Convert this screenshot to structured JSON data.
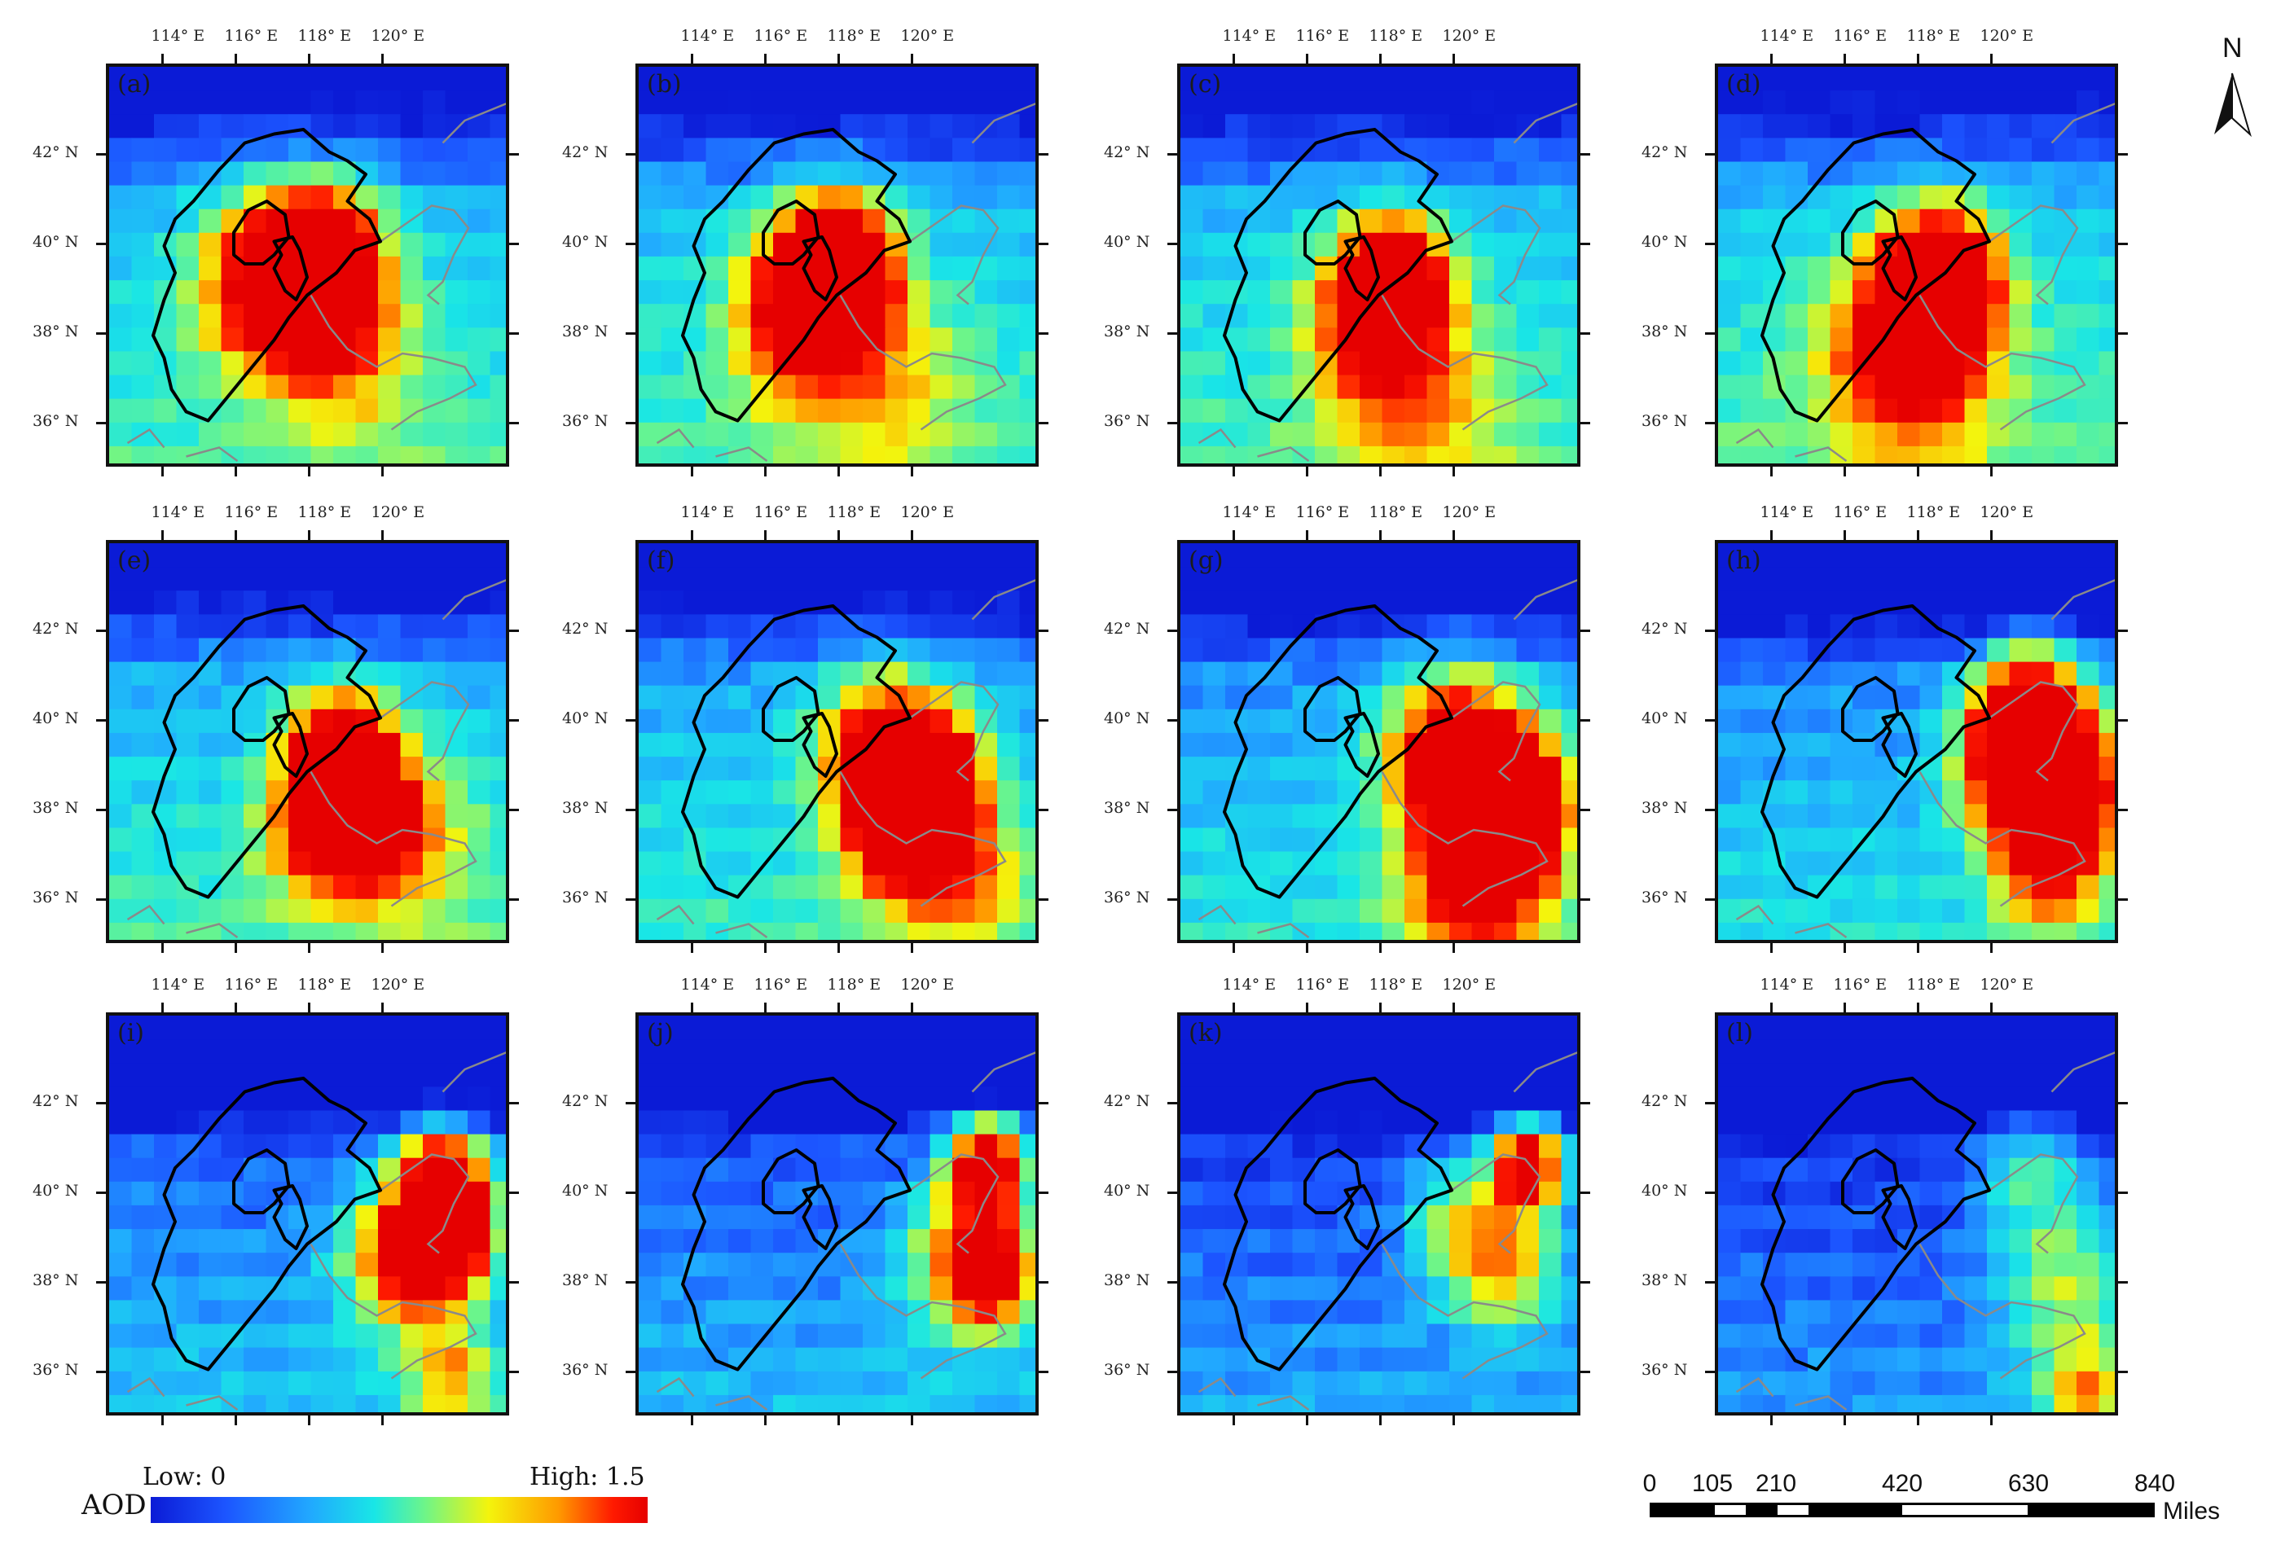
{
  "panels": [
    {
      "label": "(a)",
      "heat": [
        [
          118.3,
          39.7,
          1.0,
          1.6
        ],
        [
          116.7,
          39.2,
          0.7,
          1.8
        ],
        [
          118.0,
          38.5,
          0.4,
          1.5
        ],
        [
          119,
          37.5,
          0.3,
          2.0
        ]
      ],
      "base": 0.35,
      "north_fade": 0.18
    },
    {
      "label": "(b)",
      "heat": [
        [
          118.0,
          39.6,
          1.0,
          1.4
        ],
        [
          117.3,
          39.0,
          0.7,
          1.7
        ],
        [
          117.0,
          38.0,
          0.4,
          1.8
        ],
        [
          119.5,
          37,
          0.25,
          2
        ]
      ],
      "base": 0.36,
      "north_fade": 0.2
    },
    {
      "label": "(c)",
      "heat": [
        [
          118.3,
          39.2,
          1.05,
          1.3
        ],
        [
          117.8,
          38.2,
          0.55,
          1.8
        ],
        [
          119,
          36.5,
          0.3,
          2.2
        ]
      ],
      "base": 0.36,
      "north_fade": 0.2
    },
    {
      "label": "(d)",
      "heat": [
        [
          118.6,
          39.3,
          1.1,
          1.4
        ],
        [
          118.0,
          38.0,
          0.6,
          1.9
        ],
        [
          117.5,
          37.5,
          0.35,
          2.2
        ]
      ],
      "base": 0.38,
      "north_fade": 0.2
    },
    {
      "label": "(e)",
      "heat": [
        [
          118.8,
          39.2,
          1.0,
          1.4
        ],
        [
          119.3,
          38.0,
          0.8,
          1.3
        ],
        [
          118.3,
          37.5,
          0.5,
          1.5
        ],
        [
          120.5,
          37.5,
          0.4,
          1.8
        ]
      ],
      "base": 0.35,
      "north_fade": 0.22
    },
    {
      "label": "(f)",
      "heat": [
        [
          119.3,
          39.2,
          1.0,
          1.7
        ],
        [
          120.5,
          38.6,
          1.0,
          1.3
        ],
        [
          119.7,
          37.3,
          0.7,
          1.4
        ],
        [
          121.5,
          36.5,
          0.4,
          1.5
        ]
      ],
      "base": 0.33,
      "north_fade": 0.22
    },
    {
      "label": "(g)",
      "heat": [
        [
          120.0,
          39.2,
          1.0,
          1.8
        ],
        [
          121.5,
          38.3,
          1.0,
          1.5
        ],
        [
          121.2,
          37.0,
          0.7,
          1.6
        ],
        [
          120,
          36,
          0.4,
          1.7
        ]
      ],
      "base": 0.3,
      "north_fade": 0.22
    },
    {
      "label": "(h)",
      "heat": [
        [
          120.8,
          39.2,
          1.0,
          1.6
        ],
        [
          122.0,
          38.5,
          0.9,
          1.6
        ],
        [
          121.0,
          40.5,
          0.6,
          1.4
        ],
        [
          121.5,
          36.8,
          0.55,
          1.4
        ]
      ],
      "base": 0.28,
      "north_fade": 0.25
    },
    {
      "label": "(i)",
      "heat": [
        [
          121.6,
          40.3,
          1.0,
          1.2
        ],
        [
          121.8,
          39.0,
          0.95,
          1.2
        ],
        [
          120.5,
          38.6,
          0.75,
          1.5
        ],
        [
          121.8,
          36.0,
          0.45,
          1.2
        ]
      ],
      "base": 0.22,
      "north_fade": 0.3
    },
    {
      "label": "(j)",
      "heat": [
        [
          122.0,
          40.7,
          1.0,
          1.1
        ],
        [
          121.5,
          38.6,
          0.65,
          1.6
        ],
        [
          122.2,
          38.2,
          0.75,
          1.0
        ]
      ],
      "base": 0.2,
      "north_fade": 0.3
    },
    {
      "label": "(k)",
      "heat": [
        [
          122.0,
          40.7,
          1.0,
          1.0
        ],
        [
          121.3,
          38.5,
          0.55,
          1.5
        ],
        [
          120,
          39.5,
          0.35,
          1.4
        ]
      ],
      "base": 0.16,
      "north_fade": 0.32
    },
    {
      "label": "(l)",
      "heat": [
        [
          122.0,
          38.0,
          0.4,
          1.8
        ],
        [
          121.0,
          40.5,
          0.3,
          1.5
        ],
        [
          122.5,
          35.5,
          0.5,
          1.2
        ]
      ],
      "base": 0.14,
      "north_fade": 0.34
    }
  ],
  "axes": {
    "lon_ticks": [
      114,
      116,
      118,
      120
    ],
    "lat_ticks": [
      42,
      40,
      38,
      36
    ],
    "lon_range": [
      112.5,
      123.5
    ],
    "lat_range": [
      35.0,
      44.0
    ]
  },
  "legend": {
    "title": "AOD",
    "low": "Low: 0",
    "high": "High: 1.5"
  },
  "scale_bar": {
    "ticks": [
      "0",
      "105",
      "210",
      "420",
      "630",
      "840"
    ],
    "unit": "Miles"
  },
  "north_arrow": {
    "letter": "N"
  },
  "colors": {
    "frame": "#111111",
    "boundary": "#000000",
    "coastline": "#8a8a8a",
    "ramp": [
      "#0b1bd6",
      "#1c55ff",
      "#21a8ff",
      "#19e6e6",
      "#6cf58a",
      "#f4f40c",
      "#ff9a00",
      "#ff1a00",
      "#e60000"
    ]
  }
}
